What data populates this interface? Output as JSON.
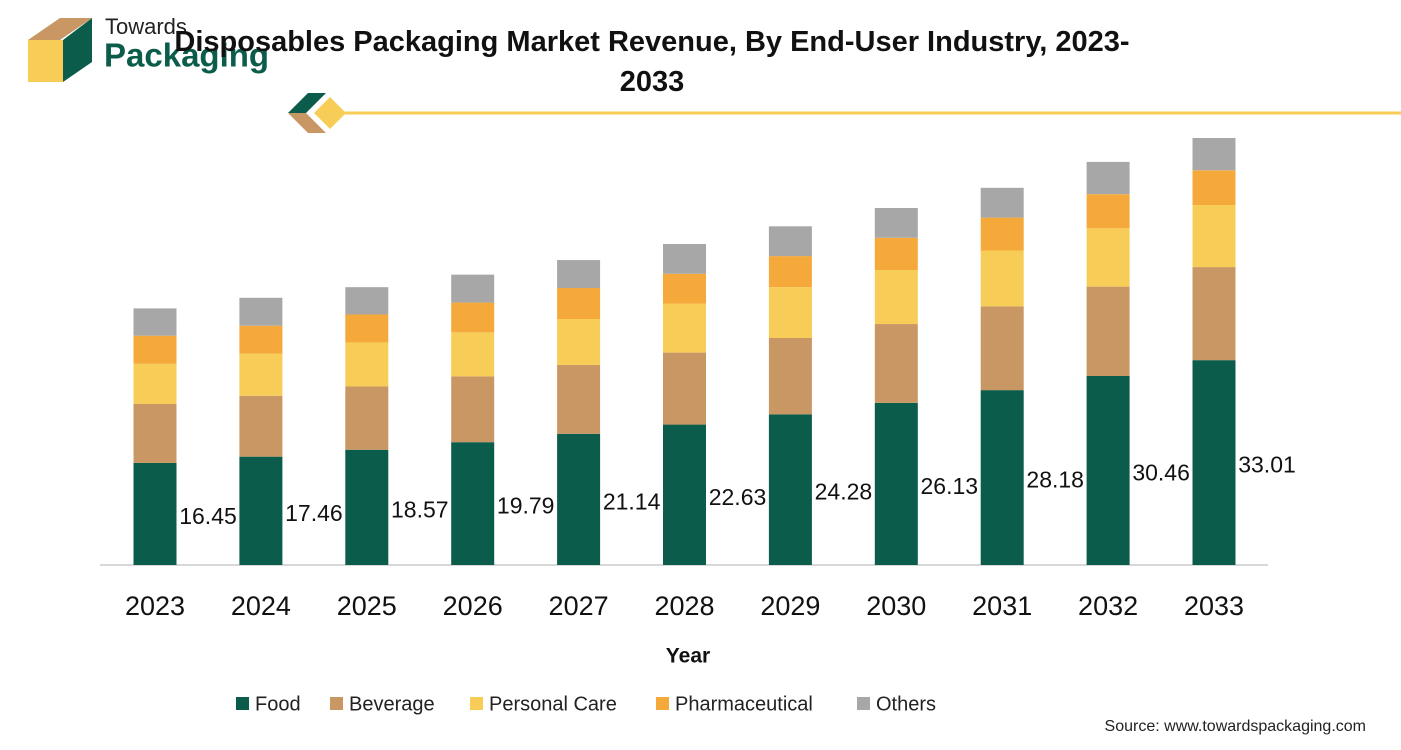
{
  "logo": {
    "line1": "Towards",
    "line2": "Packaging"
  },
  "chart_data": {
    "type": "stacked_bar",
    "title": "Disposables Packaging Market Revenue, By End-User Industry, 2023-2033",
    "xlabel": "Year",
    "categories": [
      "2023",
      "2024",
      "2025",
      "2026",
      "2027",
      "2028",
      "2029",
      "2030",
      "2031",
      "2032",
      "2033"
    ],
    "series": [
      {
        "name": "Food",
        "color": "#0b5c4a",
        "values": [
          16.45,
          17.46,
          18.57,
          19.79,
          21.14,
          22.63,
          24.28,
          26.13,
          28.18,
          30.46,
          33.01
        ]
      },
      {
        "name": "Beverage",
        "color": "#c99764",
        "values": [
          9.5,
          9.8,
          10.2,
          10.6,
          11.1,
          11.6,
          12.3,
          12.7,
          13.5,
          14.4,
          15.0
        ]
      },
      {
        "name": "Personal Care",
        "color": "#f7cd58",
        "values": [
          6.5,
          6.8,
          7.1,
          7.1,
          7.4,
          7.9,
          8.2,
          8.7,
          9.0,
          9.4,
          10.0
        ]
      },
      {
        "name": "Pharmaceutical",
        "color": "#f4a93a",
        "values": [
          4.5,
          4.5,
          4.5,
          4.8,
          5.0,
          4.8,
          5.0,
          5.2,
          5.3,
          5.5,
          5.6
        ]
      },
      {
        "name": "Others",
        "color": "#a7a7a7",
        "values": [
          4.4,
          4.5,
          4.4,
          4.5,
          4.5,
          4.8,
          4.8,
          4.8,
          4.8,
          5.2,
          5.2
        ]
      }
    ],
    "labeled_series": 0,
    "legend": "bottom",
    "source": "Source: www.towardspackaging.com"
  }
}
